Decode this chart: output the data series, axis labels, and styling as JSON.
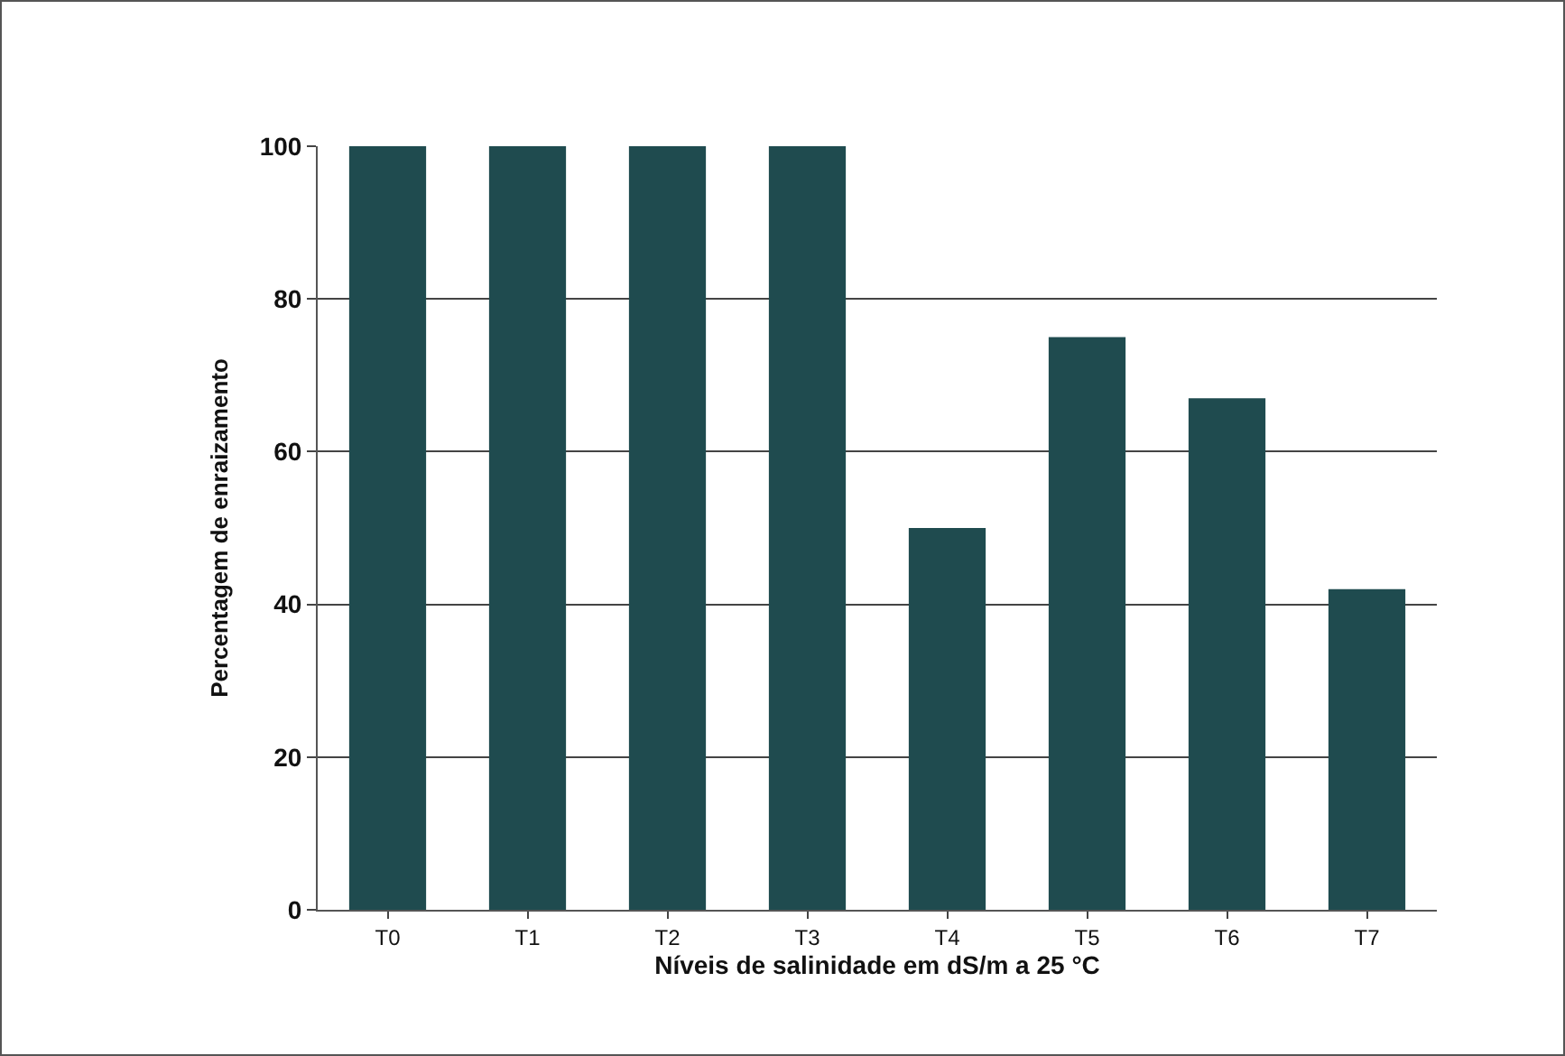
{
  "chart_data": {
    "type": "bar",
    "xlabel": "Níveis de salinidade em dS/m a 25 °C",
    "ylabel": "Percentagem de enraizamento",
    "categories": [
      "T0",
      "T1",
      "T2",
      "T3",
      "T4",
      "T5",
      "T6",
      "T7"
    ],
    "values": [
      100,
      100,
      100,
      100,
      50,
      75,
      67,
      42
    ],
    "color": "#1f4b4f",
    "ylim": [
      0,
      100
    ],
    "yticks": [
      0,
      20,
      40,
      60,
      80,
      100
    ],
    "grid": "y"
  }
}
